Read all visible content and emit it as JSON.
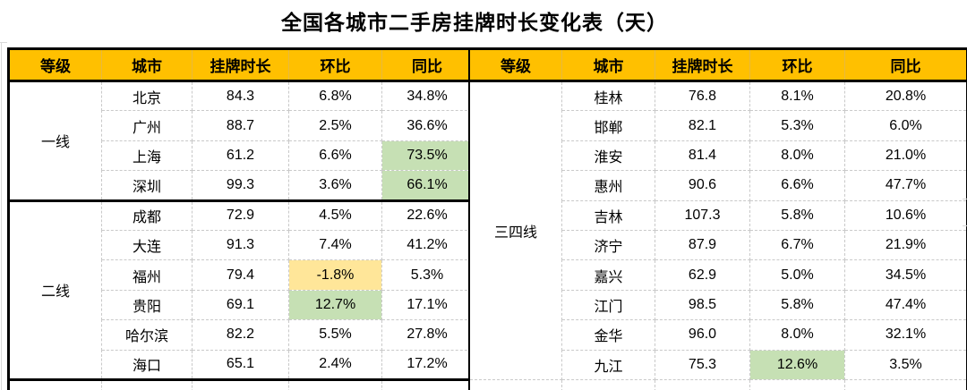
{
  "chart_data": {
    "type": "table",
    "title": "全国各城市二手房挂牌时长变化表（天）",
    "columns": [
      "等级",
      "城市",
      "挂牌时长",
      "环比",
      "同比"
    ],
    "colors": {
      "header_bg": "#FFC000",
      "highlight_green": "#C6E0B4",
      "highlight_yellow": "#FFE699",
      "border": "#000000"
    },
    "left_table": {
      "groups": [
        {
          "tier": "一线",
          "rows": [
            {
              "city": "北京",
              "duration": "84.3",
              "mom": "6.8%",
              "yoy": "34.8%"
            },
            {
              "city": "广州",
              "duration": "88.7",
              "mom": "2.5%",
              "yoy": "36.6%"
            },
            {
              "city": "上海",
              "duration": "61.2",
              "mom": "6.6%",
              "yoy": "73.5%",
              "yoy_hl": "green"
            },
            {
              "city": "深圳",
              "duration": "99.3",
              "mom": "3.6%",
              "yoy": "66.1%",
              "yoy_hl": "green"
            }
          ]
        },
        {
          "tier": "二线",
          "rows": [
            {
              "city": "成都",
              "duration": "72.9",
              "mom": "4.5%",
              "yoy": "22.6%"
            },
            {
              "city": "大连",
              "duration": "91.3",
              "mom": "7.4%",
              "yoy": "41.2%"
            },
            {
              "city": "福州",
              "duration": "79.4",
              "mom": "-1.8%",
              "mom_hl": "yellow",
              "yoy": "5.3%"
            },
            {
              "city": "贵阳",
              "duration": "69.1",
              "mom": "12.7%",
              "mom_hl": "green",
              "yoy": "17.1%"
            },
            {
              "city": "哈尔滨",
              "duration": "82.2",
              "mom": "5.5%",
              "yoy": "27.8%"
            },
            {
              "city": "海口",
              "duration": "65.1",
              "mom": "2.4%",
              "yoy": "17.2%"
            }
          ]
        }
      ]
    },
    "right_table": {
      "groups": [
        {
          "tier": "三四线",
          "rows": [
            {
              "city": "桂林",
              "duration": "76.8",
              "mom": "8.1%",
              "yoy": "20.8%"
            },
            {
              "city": "邯郸",
              "duration": "82.1",
              "mom": "5.3%",
              "yoy": "6.0%"
            },
            {
              "city": "淮安",
              "duration": "81.4",
              "mom": "8.0%",
              "yoy": "21.0%"
            },
            {
              "city": "惠州",
              "duration": "90.6",
              "mom": "6.6%",
              "yoy": "47.7%"
            },
            {
              "city": "吉林",
              "duration": "107.3",
              "mom": "5.8%",
              "yoy": "10.6%"
            },
            {
              "city": "济宁",
              "duration": "87.9",
              "mom": "6.7%",
              "yoy": "21.9%"
            },
            {
              "city": "嘉兴",
              "duration": "62.9",
              "mom": "5.0%",
              "yoy": "34.5%"
            },
            {
              "city": "江门",
              "duration": "98.5",
              "mom": "5.8%",
              "yoy": "47.4%"
            },
            {
              "city": "金华",
              "duration": "96.0",
              "mom": "8.0%",
              "yoy": "32.1%"
            },
            {
              "city": "九江",
              "duration": "75.3",
              "mom": "12.6%",
              "mom_hl": "green",
              "yoy": "3.5%"
            }
          ]
        }
      ]
    }
  }
}
